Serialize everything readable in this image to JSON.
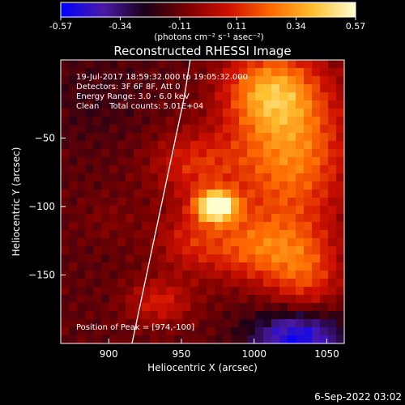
{
  "colorbar": {
    "tick_labels": [
      "-0.57",
      "-0.34",
      "-0.11",
      "0.11",
      "0.34",
      "0.57"
    ],
    "tick_values": [
      -0.57,
      -0.34,
      -0.11,
      0.11,
      0.34,
      0.57
    ],
    "range": [
      -0.57,
      0.57
    ],
    "units_text": "(photons cm⁻² s⁻¹ asec⁻²)",
    "colors": [
      "#0000ff",
      "#4a1aa8",
      "#1a0018",
      "#7a0000",
      "#d01000",
      "#ff6a00",
      "#ffc030",
      "#ffffd0"
    ]
  },
  "chart_data": {
    "type": "heatmap",
    "title": "Reconstructed RHESSI Image",
    "xlabel": "Heliocentric X (arcsec)",
    "ylabel": "Heliocentric Y (arcsec)",
    "xlim": [
      867,
      1062
    ],
    "ylim": [
      -200,
      7
    ],
    "x_ticks": [
      900,
      950,
      1000,
      1050
    ],
    "x_tick_labels": [
      "900",
      "950",
      "1000",
      "1050"
    ],
    "y_ticks": [
      -50,
      -100,
      -150
    ],
    "y_tick_labels": [
      "−50",
      "−100",
      "−150"
    ],
    "annotations": [
      "19-Jul-2017 18:59:32.000 to 19:05:32.000",
      "Detectors: 3F 6F 8F, Att 0",
      "Energy Range: 3.0 - 6.0 keV",
      "Clean    Total counts: 5.01E+04"
    ],
    "peak_label": "Position of Peak = [974,-100]",
    "peak": [
      974,
      -100
    ],
    "peak_value": 0.57,
    "limb_curve": [
      [
        916,
        -200
      ],
      [
        922,
        -170
      ],
      [
        928,
        -140
      ],
      [
        934,
        -110
      ],
      [
        940,
        -80
      ],
      [
        946,
        -50
      ],
      [
        952,
        -20
      ],
      [
        956,
        7
      ]
    ],
    "grid": false
  },
  "footer": {
    "timestamp": "6-Sep-2022 03:02"
  }
}
